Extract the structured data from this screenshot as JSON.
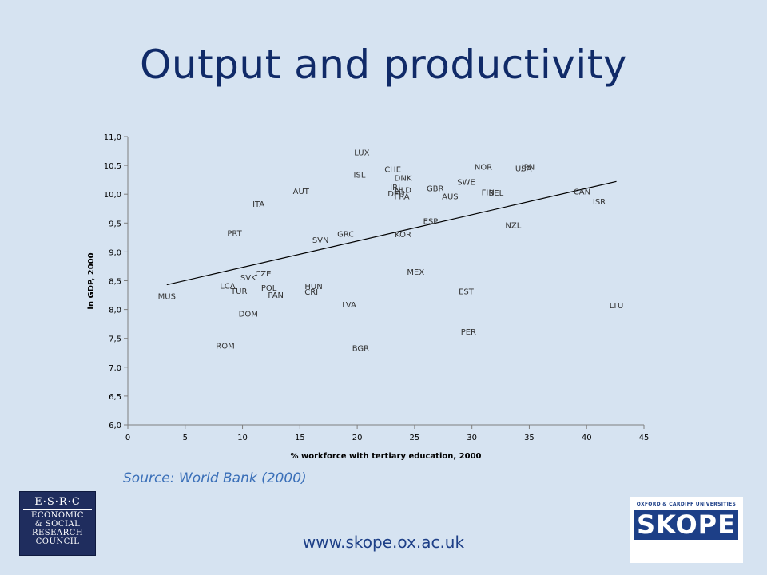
{
  "slide": {
    "title": "Output and productivity",
    "source": "Source: World Bank (2000)",
    "website": "www.skope.ox.ac.uk"
  },
  "logos": {
    "esrc_big": "E·S·R·C",
    "esrc_lines": [
      "ECONOMIC",
      "& SOCIAL",
      "RESEARCH",
      "COUNCIL"
    ],
    "skope_uni": "OXFORD & CARDIFF UNIVERSITIES",
    "skope_word": "SKOPE"
  },
  "chart_data": {
    "type": "scatter",
    "title": "",
    "xlabel": "% workforce with tertiary education, 2000",
    "ylabel": "ln GDP, 2000",
    "xlim": [
      0,
      45
    ],
    "ylim": [
      6.0,
      11.0
    ],
    "x_ticks": [
      "0",
      "5",
      "10",
      "15",
      "20",
      "25",
      "30",
      "35",
      "40",
      "45"
    ],
    "y_ticks": [
      "6,0",
      "6,5",
      "7,0",
      "7,5",
      "8,0",
      "8,5",
      "9,0",
      "9,5",
      "10,0",
      "10,5",
      "11,0"
    ],
    "grid": false,
    "trendline": {
      "x": [
        3.4,
        42.6
      ],
      "y": [
        8.43,
        10.22
      ]
    },
    "points": [
      {
        "label": "LUX",
        "x": 20.4,
        "y": 10.73
      },
      {
        "label": "NOR",
        "x": 31.0,
        "y": 10.48
      },
      {
        "label": "JPN",
        "x": 34.9,
        "y": 10.48
      },
      {
        "label": "USA",
        "x": 34.5,
        "y": 10.45
      },
      {
        "label": "CHE",
        "x": 23.1,
        "y": 10.44
      },
      {
        "label": "ISL",
        "x": 20.2,
        "y": 10.34
      },
      {
        "label": "DNK",
        "x": 24.0,
        "y": 10.29
      },
      {
        "label": "SWE",
        "x": 29.5,
        "y": 10.22
      },
      {
        "label": "IRL",
        "x": 23.4,
        "y": 10.13
      },
      {
        "label": "GBR",
        "x": 26.8,
        "y": 10.11
      },
      {
        "label": "NLD",
        "x": 24.0,
        "y": 10.08
      },
      {
        "label": "AUT",
        "x": 15.1,
        "y": 10.06
      },
      {
        "label": "DEU",
        "x": 23.4,
        "y": 10.02
      },
      {
        "label": "FIN",
        "x": 31.4,
        "y": 10.04
      },
      {
        "label": "BEL",
        "x": 32.1,
        "y": 10.03
      },
      {
        "label": "CAN",
        "x": 39.6,
        "y": 10.05
      },
      {
        "label": "FRA",
        "x": 23.9,
        "y": 9.97
      },
      {
        "label": "AUS",
        "x": 28.1,
        "y": 9.97
      },
      {
        "label": "ISR",
        "x": 41.1,
        "y": 9.88
      },
      {
        "label": "ITA",
        "x": 11.4,
        "y": 9.84
      },
      {
        "label": "ESP",
        "x": 26.4,
        "y": 9.54
      },
      {
        "label": "NZL",
        "x": 33.6,
        "y": 9.47
      },
      {
        "label": "PRT",
        "x": 9.3,
        "y": 9.33
      },
      {
        "label": "GRC",
        "x": 19.0,
        "y": 9.32
      },
      {
        "label": "KOR",
        "x": 24.0,
        "y": 9.31
      },
      {
        "label": "SVN",
        "x": 16.8,
        "y": 9.21
      },
      {
        "label": "MEX",
        "x": 25.1,
        "y": 8.66
      },
      {
        "label": "CZE",
        "x": 11.8,
        "y": 8.63
      },
      {
        "label": "SVK",
        "x": 10.5,
        "y": 8.56
      },
      {
        "label": "LCA",
        "x": 8.7,
        "y": 8.42
      },
      {
        "label": "HUN",
        "x": 16.2,
        "y": 8.41
      },
      {
        "label": "POL",
        "x": 12.3,
        "y": 8.38
      },
      {
        "label": "TUR",
        "x": 9.7,
        "y": 8.33
      },
      {
        "label": "CRI",
        "x": 16.0,
        "y": 8.31
      },
      {
        "label": "EST",
        "x": 29.5,
        "y": 8.32
      },
      {
        "label": "PAN",
        "x": 12.9,
        "y": 8.26
      },
      {
        "label": "MUS",
        "x": 3.4,
        "y": 8.24
      },
      {
        "label": "LVA",
        "x": 19.3,
        "y": 8.09
      },
      {
        "label": "LTU",
        "x": 42.6,
        "y": 8.08
      },
      {
        "label": "DOM",
        "x": 10.5,
        "y": 7.93
      },
      {
        "label": "PER",
        "x": 29.7,
        "y": 7.62
      },
      {
        "label": "ROM",
        "x": 8.5,
        "y": 7.38
      },
      {
        "label": "BGR",
        "x": 20.3,
        "y": 7.34
      }
    ]
  }
}
